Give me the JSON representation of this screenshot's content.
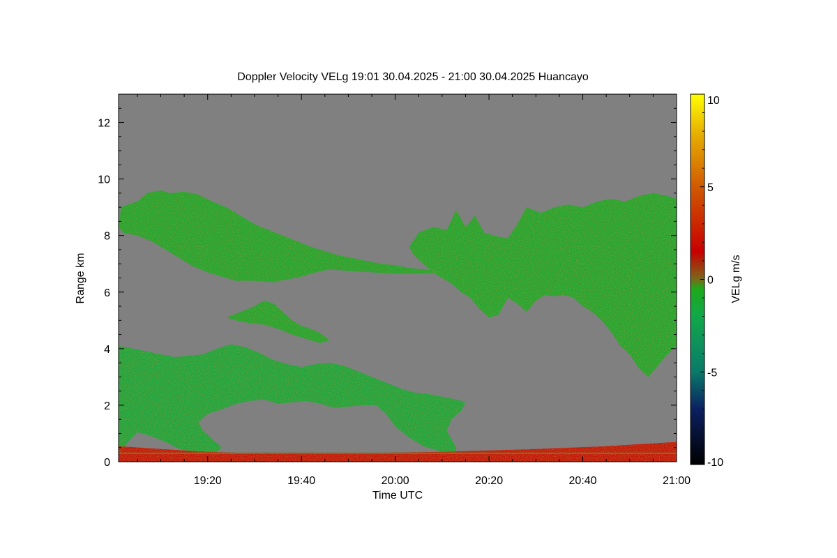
{
  "chart_data": {
    "type": "heatmap",
    "title": "Doppler Velocity VELg   19:01 30.04.2025 - 21:00 30.04.2025 Huancayo",
    "xlabel": "Time UTC",
    "ylabel": "Range km",
    "colorbar_label": "VELg m/s",
    "x_range_minutes_utc": [
      1141,
      1260
    ],
    "x_ticks": [
      {
        "value": 1160,
        "label": "19:20"
      },
      {
        "value": 1180,
        "label": "19:40"
      },
      {
        "value": 1200,
        "label": "20:00"
      },
      {
        "value": 1220,
        "label": "20:20"
      },
      {
        "value": 1240,
        "label": "20:40"
      },
      {
        "value": 1260,
        "label": "21:00"
      }
    ],
    "ylim": [
      0,
      13
    ],
    "y_ticks": [
      0,
      2,
      4,
      6,
      8,
      10,
      12
    ],
    "colorbar_range": [
      -10,
      10
    ],
    "colorbar_ticks": [
      10,
      5,
      0,
      -5,
      -10
    ],
    "colorscale": [
      {
        "value": -10,
        "color": "#000000"
      },
      {
        "value": -7,
        "color": "#0b2060"
      },
      {
        "value": -5,
        "color": "#0a7a6a"
      },
      {
        "value": -2,
        "color": "#11a84a"
      },
      {
        "value": -0.5,
        "color": "#1ea81a"
      },
      {
        "value": 0,
        "color": "#7a6a1a"
      },
      {
        "value": 1.5,
        "color": "#c80000"
      },
      {
        "value": 5,
        "color": "#d05a00"
      },
      {
        "value": 8,
        "color": "#e8b400"
      },
      {
        "value": 10,
        "color": "#ffff00"
      }
    ],
    "background_color": "#808080",
    "echo_regions": [
      {
        "name": "upper-left-layer",
        "dominant_velocity": -1,
        "time_start": "19:01",
        "time_end": "20:10",
        "range_km": [
          6.3,
          9.6
        ]
      },
      {
        "name": "upper-right-layer",
        "dominant_velocity": -1,
        "time_start": "20:03",
        "time_end": "21:00",
        "range_km": [
          3.0,
          9.5
        ]
      },
      {
        "name": "mid-streaks",
        "dominant_velocity": -1,
        "time_start": "19:24",
        "time_end": "19:47",
        "range_km": [
          4.2,
          5.7
        ]
      },
      {
        "name": "lower-layer",
        "dominant_velocity": -1.5,
        "time_start": "19:01",
        "time_end": "20:16",
        "range_km": [
          0.1,
          4.2
        ]
      },
      {
        "name": "near-surface-clutter",
        "dominant_velocity": 2,
        "time_start": "19:01",
        "time_end": "21:00",
        "range_km": [
          0,
          0.6
        ]
      }
    ]
  }
}
